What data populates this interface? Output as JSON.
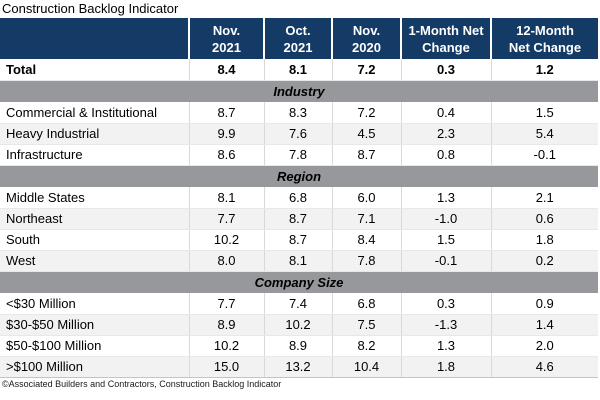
{
  "chart_data": {
    "type": "table",
    "title": "Construction Backlog Indicator",
    "source": "©Associated Builders and Contractors, Construction Backlog Indicator",
    "columns": [
      {
        "label": "",
        "line1": "",
        "line2": ""
      },
      {
        "label": "Nov. 2021",
        "line1": "Nov.",
        "line2": "2021"
      },
      {
        "label": "Oct. 2021",
        "line1": "Oct.",
        "line2": "2021"
      },
      {
        "label": "Nov. 2020",
        "line1": "Nov.",
        "line2": "2020"
      },
      {
        "label": "1-Month Net Change",
        "line1": "1-Month Net",
        "line2": "Change"
      },
      {
        "label": "12-Month Net Change",
        "line1": "12-Month",
        "line2": "Net Change"
      }
    ],
    "total_row": {
      "label": "Total",
      "values": [
        "8.4",
        "8.1",
        "7.2",
        "0.3",
        "1.2"
      ]
    },
    "sections": [
      {
        "name": "Industry",
        "rows": [
          {
            "label": "Commercial & Institutional",
            "values": [
              "8.7",
              "8.3",
              "7.2",
              "0.4",
              "1.5"
            ]
          },
          {
            "label": "Heavy Industrial",
            "values": [
              "9.9",
              "7.6",
              "4.5",
              "2.3",
              "5.4"
            ]
          },
          {
            "label": "Infrastructure",
            "values": [
              "8.6",
              "7.8",
              "8.7",
              "0.8",
              "-0.1"
            ]
          }
        ]
      },
      {
        "name": "Region",
        "rows": [
          {
            "label": "Middle States",
            "values": [
              "8.1",
              "6.8",
              "6.0",
              "1.3",
              "2.1"
            ]
          },
          {
            "label": "Northeast",
            "values": [
              "7.7",
              "8.7",
              "7.1",
              "-1.0",
              "0.6"
            ]
          },
          {
            "label": "South",
            "values": [
              "10.2",
              "8.7",
              "8.4",
              "1.5",
              "1.8"
            ]
          },
          {
            "label": "West",
            "values": [
              "8.0",
              "8.1",
              "7.8",
              "-0.1",
              "0.2"
            ]
          }
        ]
      },
      {
        "name": "Company Size",
        "rows": [
          {
            "label": "<$30 Million",
            "values": [
              "7.7",
              "7.4",
              "6.8",
              "0.3",
              "0.9"
            ]
          },
          {
            "label": "$30-$50 Million",
            "values": [
              "8.9",
              "10.2",
              "7.5",
              "-1.3",
              "1.4"
            ]
          },
          {
            "label": "$50-$100 Million",
            "values": [
              "10.2",
              "8.9",
              "8.2",
              "1.3",
              "2.0"
            ]
          },
          {
            "label": ">$100 Million",
            "values": [
              "15.0",
              "13.2",
              "10.4",
              "1.8",
              "4.6"
            ]
          }
        ]
      }
    ]
  },
  "colors": {
    "header_bg": "#143A66",
    "header_text": "#FFFFFF",
    "section_band_bg": "#96989B",
    "alt_row_bg": "#F2F2F2",
    "grid_line": "#D9D9D9"
  }
}
